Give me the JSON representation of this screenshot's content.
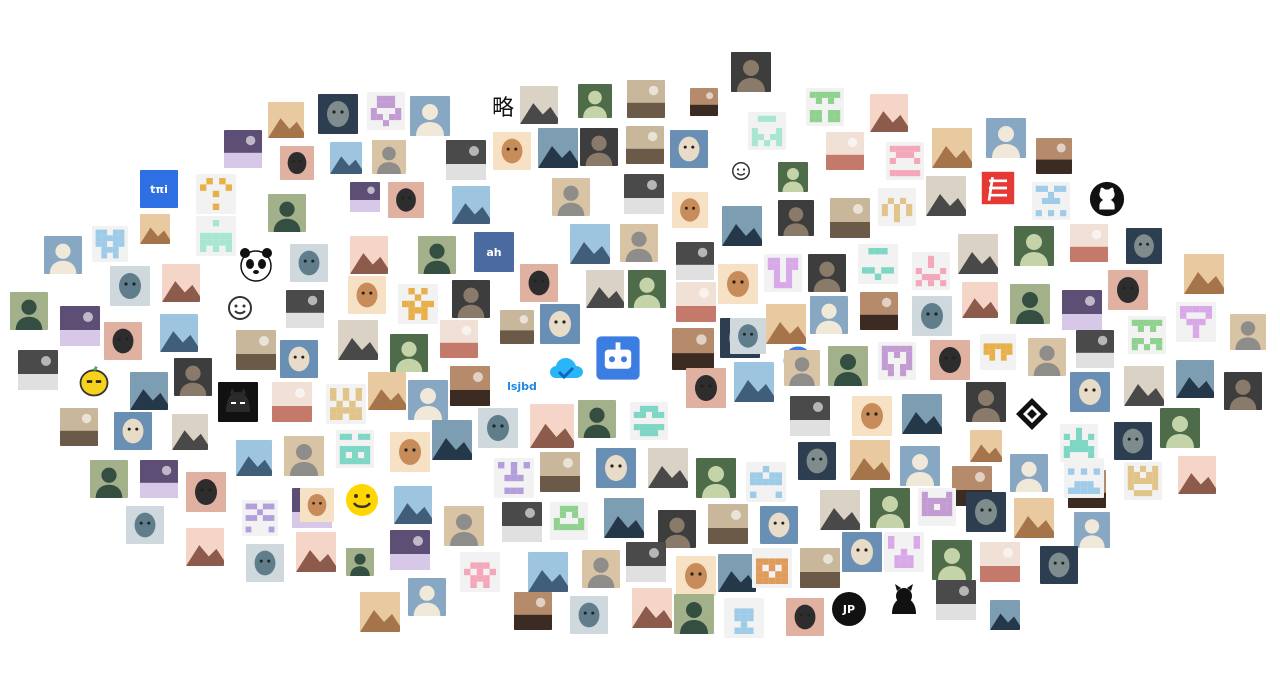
{
  "title": "",
  "label_texts": {
    "tmi": "tπi",
    "ah": "ah",
    "lue": "略",
    "lsjbd": "lsjbd",
    "jp": "JP"
  },
  "identicon_colors": {
    "mint": "#a8e6cf",
    "teal": "#7ed6c4",
    "pink": "#f4a7b9",
    "red": "#e57373",
    "purple": "#b39ddb",
    "violet": "#c39bd3",
    "tan": "#e0c48a",
    "gold": "#e8b04a",
    "orange": "#e09b5a",
    "sky": "#9ecbe8",
    "green": "#8fd18f",
    "lilac": "#d8a8e8"
  },
  "brand_colors": {
    "github": "#111111",
    "cloud": "#29b6f6",
    "tmi_blue": "#2f6fe4",
    "bot_blue": "#3b7de0",
    "red_logo": "#e53935",
    "lemon": "#f7d21c",
    "smiley": "#ffd600"
  },
  "avatars": [
    {
      "kind": "identicon",
      "icon": "identicon",
      "color": "mint"
    },
    {
      "kind": "identicon",
      "icon": "identicon",
      "color": "pink"
    },
    {
      "kind": "identicon",
      "icon": "identicon",
      "color": "purple"
    },
    {
      "kind": "identicon",
      "icon": "identicon",
      "color": "tan"
    },
    {
      "kind": "identicon",
      "icon": "identicon",
      "color": "teal"
    },
    {
      "kind": "identicon",
      "icon": "identicon",
      "color": "red"
    },
    {
      "kind": "identicon",
      "icon": "identicon",
      "color": "sky"
    },
    {
      "kind": "identicon",
      "icon": "identicon",
      "color": "gold"
    },
    {
      "kind": "identicon",
      "icon": "identicon",
      "color": "lilac"
    },
    {
      "kind": "identicon",
      "icon": "identicon",
      "color": "green"
    },
    {
      "kind": "identicon",
      "icon": "identicon",
      "color": "orange"
    },
    {
      "kind": "identicon",
      "icon": "identicon",
      "color": "violet"
    },
    {
      "kind": "identicon",
      "icon": "identicon",
      "color": "mint"
    },
    {
      "kind": "identicon",
      "icon": "identicon",
      "color": "pink"
    },
    {
      "kind": "identicon",
      "icon": "identicon",
      "color": "tan"
    },
    {
      "kind": "identicon",
      "icon": "identicon",
      "color": "teal"
    },
    {
      "kind": "identicon",
      "icon": "identicon",
      "color": "sky"
    },
    {
      "kind": "identicon",
      "icon": "identicon",
      "color": "purple"
    },
    {
      "kind": "identicon",
      "icon": "identicon",
      "color": "red"
    },
    {
      "kind": "identicon",
      "icon": "identicon",
      "color": "gold"
    },
    {
      "kind": "identicon",
      "icon": "identicon",
      "color": "mint"
    },
    {
      "kind": "identicon",
      "icon": "identicon",
      "color": "pink"
    },
    {
      "kind": "identicon",
      "icon": "identicon",
      "color": "teal"
    },
    {
      "kind": "identicon",
      "icon": "identicon",
      "color": "tan"
    },
    {
      "kind": "identicon",
      "icon": "identicon",
      "color": "lilac"
    },
    {
      "kind": "identicon",
      "icon": "identicon",
      "color": "sky"
    },
    {
      "kind": "identicon",
      "icon": "identicon",
      "color": "green"
    },
    {
      "kind": "identicon",
      "icon": "identicon",
      "color": "red"
    },
    {
      "kind": "identicon",
      "icon": "identicon",
      "color": "mint"
    },
    {
      "kind": "identicon",
      "icon": "identicon",
      "color": "violet"
    },
    {
      "kind": "identicon",
      "icon": "identicon",
      "color": "pink"
    },
    {
      "kind": "identicon",
      "icon": "identicon",
      "color": "purple"
    },
    {
      "kind": "identicon",
      "icon": "identicon",
      "color": "tan"
    },
    {
      "kind": "identicon",
      "icon": "identicon",
      "color": "teal"
    },
    {
      "kind": "identicon",
      "icon": "identicon",
      "color": "gold"
    },
    {
      "kind": "logo",
      "icon": "github-icon",
      "color": "github"
    },
    {
      "kind": "logo",
      "icon": "cloud-icon",
      "color": "cloud"
    },
    {
      "kind": "logo",
      "icon": "robot-icon",
      "color": "bot_blue"
    },
    {
      "kind": "logo",
      "icon": "lemon-icon",
      "color": "lemon"
    },
    {
      "kind": "logo",
      "icon": "smiley-icon",
      "color": "smiley"
    },
    {
      "kind": "logo",
      "icon": "panda-icon",
      "color": "github"
    },
    {
      "kind": "logo",
      "icon": "cat-icon",
      "color": "github"
    },
    {
      "kind": "logo",
      "icon": "batman-icon",
      "color": "github"
    },
    {
      "kind": "logo",
      "icon": "diamond-logo-icon",
      "color": "github"
    },
    {
      "kind": "logo",
      "icon": "red-logo-icon",
      "color": "red_logo"
    },
    {
      "kind": "logo",
      "icon": "doraemon-icon",
      "color": "bot_blue"
    },
    {
      "kind": "logo",
      "icon": "smiley-outline-icon",
      "color": "github"
    }
  ]
}
